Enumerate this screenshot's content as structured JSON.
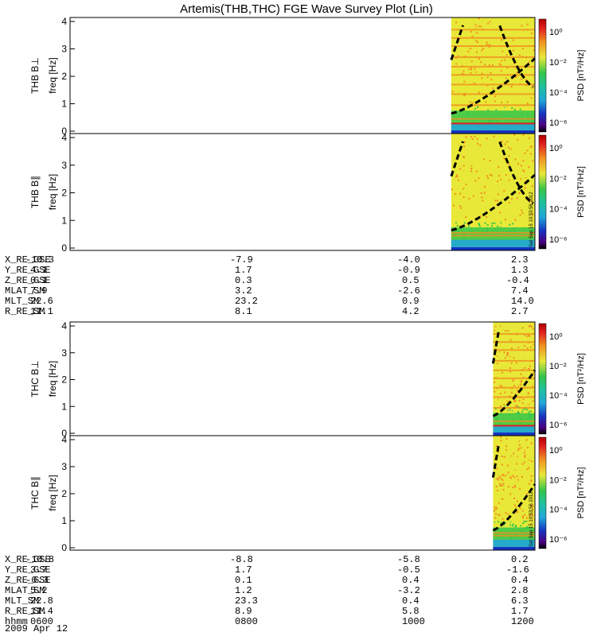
{
  "title": "Artemis(THB,THC) FGE Wave Survey Plot (Lin)",
  "panels": [
    {
      "label": "THB B⊥",
      "ylabel": "freq [Hz]"
    },
    {
      "label": "THB B∥",
      "ylabel": "freq [Hz]"
    },
    {
      "label": "THC B⊥",
      "ylabel": "freq [Hz]"
    },
    {
      "label": "THC B∥",
      "ylabel": "freq [Hz]"
    }
  ],
  "colorbar": {
    "label": "PSD [nT²/Hz]",
    "ticks": [
      "10⁰",
      "10⁻²",
      "10⁻⁴",
      "10⁻⁶"
    ]
  },
  "stamp": "Sat Sep 15 10:53:56 2012",
  "ephem_names_thb": [
    "X_RE_GSE",
    "Y_RE_GSE",
    "Z_RE_GSE",
    "MLAT_SM",
    "MLT_SM",
    "R_RE_SM"
  ],
  "ephem_thb": [
    [
      "-10.3",
      "-7.9",
      "-4.0",
      "2.3"
    ],
    [
      "4.1",
      "1.7",
      "-0.9",
      "1.3"
    ],
    [
      "0.1",
      "0.3",
      "0.5",
      "-0.4"
    ],
    [
      "7.9",
      "3.2",
      "-2.6",
      "7.4"
    ],
    [
      "22.6",
      "23.2",
      "0.9",
      "14.0"
    ],
    [
      "11.1",
      "8.1",
      "4.2",
      "2.7"
    ]
  ],
  "ephem_names_thc": [
    "X_RE_GSE",
    "Y_RE_GSE",
    "Z_RE_GSE",
    "MLAT_SM",
    "MLT_SM",
    "R_RE_SM",
    "hhmm"
  ],
  "ephem_thc": [
    [
      "-10.8",
      "-8.8",
      "-5.8",
      "0.2"
    ],
    [
      "3.7",
      "1.7",
      "-0.5",
      "-1.6"
    ],
    [
      "-0.3",
      "0.1",
      "0.4",
      "0.4"
    ],
    [
      "5.2",
      "1.2",
      "-3.2",
      "2.8"
    ],
    [
      "22.8",
      "23.3",
      "0.4",
      "6.3"
    ],
    [
      "11.4",
      "8.9",
      "5.8",
      "1.7"
    ],
    [
      "0600",
      "0800",
      "1000",
      "1200"
    ]
  ],
  "date": "2009 Apr 12",
  "colors": {
    "green": "#33c54a",
    "yellow": "#e8e838",
    "orange": "#f09020",
    "cyan": "#22a6d8",
    "blue": "#1533c0",
    "red": "#e02020"
  },
  "chart_data": {
    "type": "heatmap",
    "title": "Artemis(THB,THC) FGE Wave Survey Plot (Lin)",
    "x": [
      "0600",
      "0800",
      "1000",
      "1200"
    ],
    "xlabel": "hhmm",
    "ylim": [
      0,
      4
    ],
    "yticks": [
      0,
      1,
      2,
      3,
      4
    ],
    "colorbar_range": [
      "1e-7",
      "1e1"
    ],
    "colorbar_scale": "log",
    "data_start_fraction": {
      "THB": 0.82,
      "THC": 0.91
    },
    "traces": "dashed black curves (gyrofrequency harmonics)",
    "grid": false
  }
}
